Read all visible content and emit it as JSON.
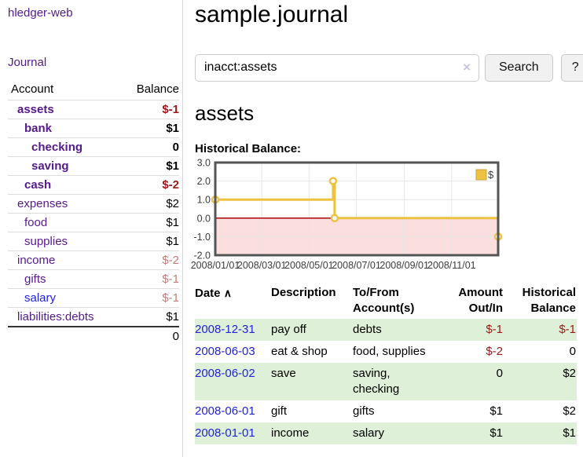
{
  "sidebar": {
    "brand": "hledger-web",
    "journal_link": "Journal",
    "table": {
      "headers": {
        "account": "Account",
        "balance": "Balance"
      },
      "accounts": [
        {
          "name": "assets",
          "balance": "$-1"
        },
        {
          "name": "bank",
          "balance": "$1"
        },
        {
          "name": "checking",
          "balance": "0"
        },
        {
          "name": "saving",
          "balance": "$1"
        },
        {
          "name": "cash",
          "balance": "$-2"
        },
        {
          "name": "expenses",
          "balance": "$2"
        },
        {
          "name": "food",
          "balance": "$1"
        },
        {
          "name": "supplies",
          "balance": "$1"
        },
        {
          "name": "income",
          "balance": "$-2"
        },
        {
          "name": "gifts",
          "balance": "$-1"
        },
        {
          "name": "salary",
          "balance": "$-1"
        },
        {
          "name": "liabilities:debts",
          "balance": "$1"
        }
      ],
      "total": "0"
    }
  },
  "header": {
    "title": "sample.journal"
  },
  "search": {
    "value": "inacct:assets",
    "clear_icon": "×",
    "button_label": "Search",
    "help_label": "?"
  },
  "account_page": {
    "heading": "assets",
    "chart_label": "Historical Balance:"
  },
  "chart_data": {
    "type": "line",
    "title": "Historical Balance",
    "series": [
      {
        "name": "$",
        "color": "#edc240",
        "step": true,
        "points": [
          {
            "date": "2008-01-01",
            "day": 0,
            "value": 1
          },
          {
            "date": "2008-06-01",
            "day": 152,
            "value": 2
          },
          {
            "date": "2008-06-03",
            "day": 154,
            "value": 0
          },
          {
            "date": "2008-12-31",
            "day": 365,
            "value": -1
          }
        ]
      }
    ],
    "x_ticks": [
      {
        "label": "2008/01/01",
        "day": 0
      },
      {
        "label": "2008/03/01",
        "day": 60
      },
      {
        "label": "2008/05/01",
        "day": 121
      },
      {
        "label": "2008/07/01",
        "day": 182
      },
      {
        "label": "2008/09/01",
        "day": 244
      },
      {
        "label": "2008/11/01",
        "day": 305
      }
    ],
    "y_ticks": [
      3.0,
      2.0,
      1.0,
      0.0,
      -1.0,
      -2.0
    ],
    "x_range_days": [
      0,
      365
    ],
    "ylim": [
      -2,
      3
    ],
    "grid": true,
    "legend_position": "top-right",
    "grid_color": "#e6e6e6",
    "border_color": "#545454",
    "tick_label_color": "#3c3c3c",
    "zero_line_color": "#aa0000",
    "negative_region_color": "#fbdede"
  },
  "register_table": {
    "sort_icon": "∧",
    "headers": {
      "date": "Date",
      "description": "Description",
      "accounts": "To/From Account(s)",
      "amount": "Amount Out/In",
      "balance": "Historical Balance"
    },
    "rows": [
      {
        "date": "2008-12-31",
        "description": "pay off",
        "accounts": "debts",
        "amount": "$-1",
        "balance": "$-1"
      },
      {
        "date": "2008-06-03",
        "description": "eat & shop",
        "accounts": "food, supplies",
        "amount": "$-2",
        "balance": "0"
      },
      {
        "date": "2008-06-02",
        "description": "save",
        "accounts": "saving, checking",
        "amount": "0",
        "balance": "$2"
      },
      {
        "date": "2008-06-01",
        "description": "gift",
        "accounts": "gifts",
        "amount": "$1",
        "balance": "$2"
      },
      {
        "date": "2008-01-01",
        "description": "income",
        "accounts": "salary",
        "amount": "$1",
        "balance": "$1"
      }
    ]
  }
}
